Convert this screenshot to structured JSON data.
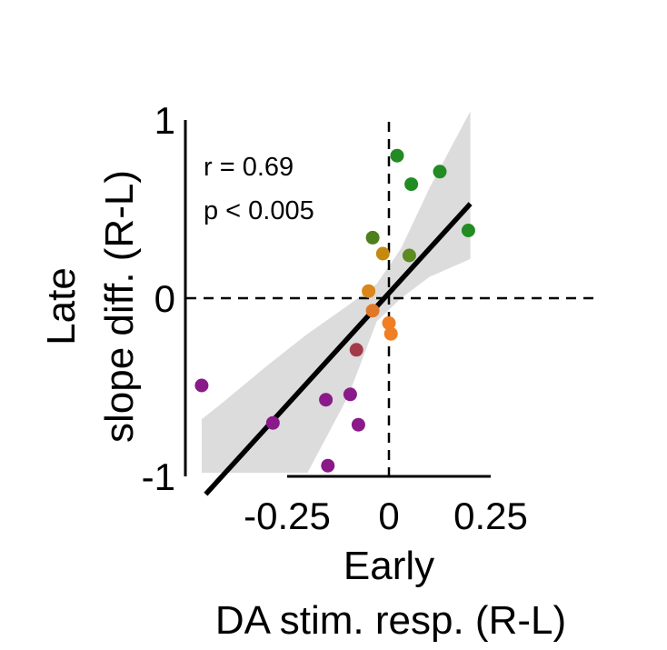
{
  "chart_data": {
    "type": "scatter",
    "xlabel_lines": [
      "Early",
      "DA stim. resp. (R-L)"
    ],
    "ylabel_lines": [
      "Late",
      "slope diff. (R-L)"
    ],
    "xticks": [
      -0.25,
      0,
      0.25
    ],
    "xtick_labels": [
      "-0.25",
      "0",
      "0.25"
    ],
    "yticks": [
      -1,
      0,
      1
    ],
    "ytick_labels": [
      "-1",
      "0",
      "1"
    ],
    "xlim": [
      -0.47,
      0.5
    ],
    "ylim": [
      -1.05,
      1.05
    ],
    "annotations": [
      "r = 0.69",
      "p < 0.005"
    ],
    "reference_lines": {
      "x": 0,
      "y": 0,
      "style": "dashed"
    },
    "fit_line": {
      "x": [
        -0.45,
        0.2
      ],
      "y": [
        -1.1,
        0.53
      ],
      "color": "#000000"
    },
    "confidence_band": {
      "x": [
        -0.46,
        -0.4,
        -0.3,
        -0.2,
        -0.1,
        -0.03,
        0.03,
        0.1,
        0.2
      ],
      "upper": [
        -0.68,
        -0.57,
        -0.38,
        -0.2,
        -0.04,
        0.08,
        0.28,
        0.62,
        1.05
      ],
      "lower": [
        -1.1,
        -1.06,
        -1.04,
        -1.04,
        -0.55,
        -0.13,
        0.0,
        0.12,
        0.22
      ],
      "color": "#dcdcdc"
    },
    "points": [
      {
        "x": 0.02,
        "y": 0.8,
        "color": "#228b22"
      },
      {
        "x": 0.125,
        "y": 0.71,
        "color": "#228b22"
      },
      {
        "x": 0.055,
        "y": 0.64,
        "color": "#228b22"
      },
      {
        "x": 0.195,
        "y": 0.38,
        "color": "#228b22"
      },
      {
        "x": -0.04,
        "y": 0.34,
        "color": "#4e7f1e"
      },
      {
        "x": 0.05,
        "y": 0.24,
        "color": "#5e8a20"
      },
      {
        "x": -0.015,
        "y": 0.25,
        "color": "#c48a10"
      },
      {
        "x": -0.05,
        "y": 0.04,
        "color": "#d9861a"
      },
      {
        "x": -0.04,
        "y": -0.07,
        "color": "#e0782a"
      },
      {
        "x": 0.0,
        "y": -0.14,
        "color": "#f07f24"
      },
      {
        "x": 0.005,
        "y": -0.2,
        "color": "#f07f24"
      },
      {
        "x": -0.08,
        "y": -0.29,
        "color": "#a23a4a"
      },
      {
        "x": -0.46,
        "y": -0.49,
        "color": "#8a1a8a"
      },
      {
        "x": -0.155,
        "y": -0.57,
        "color": "#8a1a8a"
      },
      {
        "x": -0.095,
        "y": -0.54,
        "color": "#8a1a8a"
      },
      {
        "x": -0.285,
        "y": -0.7,
        "color": "#8a1a8a"
      },
      {
        "x": -0.075,
        "y": -0.71,
        "color": "#8a1a8a"
      },
      {
        "x": -0.15,
        "y": -0.94,
        "color": "#8a1a8a"
      }
    ]
  }
}
